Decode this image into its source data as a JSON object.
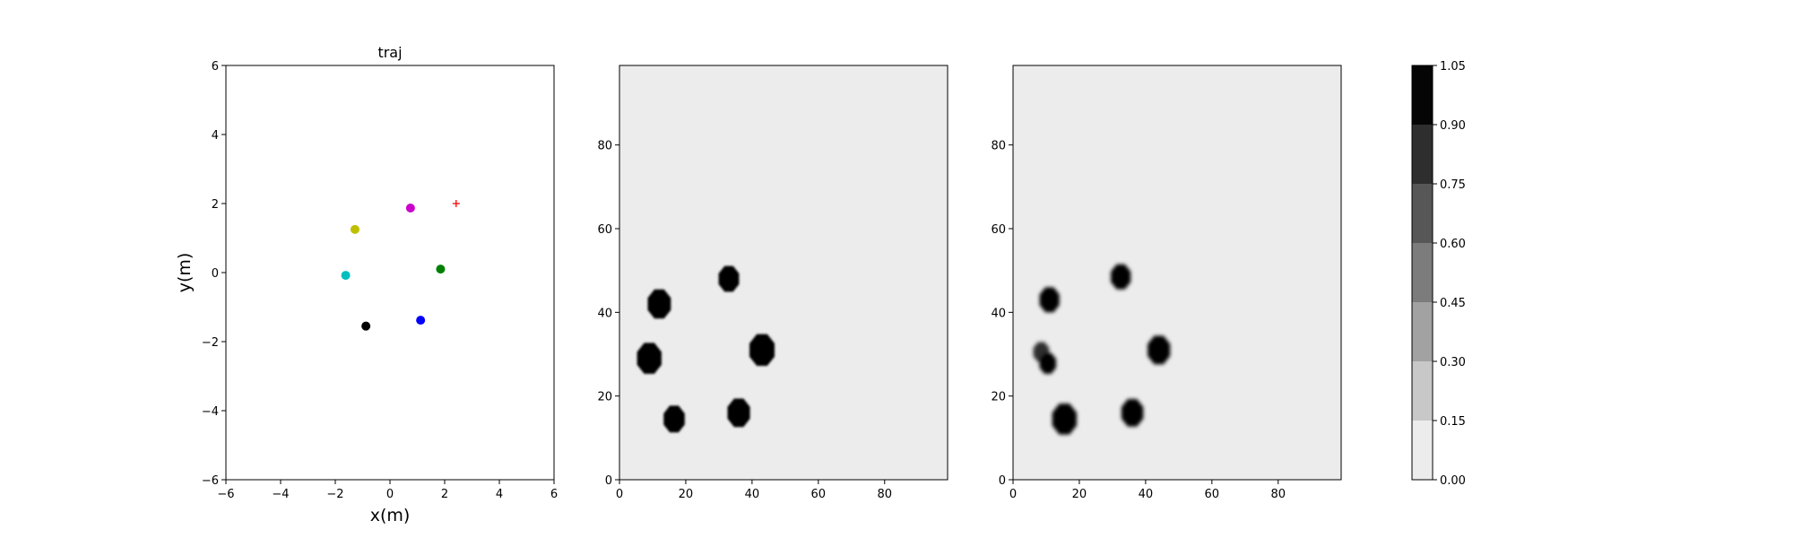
{
  "chart_data": [
    {
      "type": "scatter",
      "title": "traj",
      "xlabel": "x(m)",
      "ylabel": "y(m)",
      "xlim": [
        -6,
        6
      ],
      "ylim": [
        -6,
        6
      ],
      "xticks": [
        "−6",
        "−4",
        "−2",
        "0",
        "2",
        "4",
        "6"
      ],
      "yticks": [
        "−6",
        "−4",
        "−2",
        "0",
        "2",
        "4",
        "6"
      ],
      "xtick_values": [
        -6,
        -4,
        -2,
        0,
        2,
        4,
        6
      ],
      "ytick_values": [
        -6,
        -4,
        -2,
        0,
        2,
        4,
        6
      ],
      "points": [
        {
          "name": "agent-magenta",
          "x": 0.75,
          "y": 1.87,
          "color": "#cc00cc"
        },
        {
          "name": "agent-yellow",
          "x": -1.28,
          "y": 1.25,
          "color": "#bfbf00"
        },
        {
          "name": "agent-cyan",
          "x": -1.62,
          "y": -0.08,
          "color": "#00bfbf"
        },
        {
          "name": "agent-green",
          "x": 1.85,
          "y": 0.1,
          "color": "#008000"
        },
        {
          "name": "agent-blue",
          "x": 1.12,
          "y": -1.38,
          "color": "#0000ff"
        },
        {
          "name": "agent-black",
          "x": -0.88,
          "y": -1.55,
          "color": "#000000"
        }
      ],
      "goal_marker": {
        "name": "goal",
        "x": 2.42,
        "y": 2.0,
        "symbol": "+",
        "color": "#ff0000"
      }
    },
    {
      "type": "heatmap",
      "title": "",
      "xlim": [
        0,
        99
      ],
      "ylim": [
        0,
        99
      ],
      "xticks": [
        "0",
        "20",
        "40",
        "60",
        "80"
      ],
      "yticks": [
        "0",
        "20",
        "40",
        "60",
        "80"
      ],
      "xtick_values": [
        0,
        20,
        40,
        60,
        80
      ],
      "ytick_values": [
        0,
        20,
        40,
        60,
        80
      ],
      "background_value": 0.0,
      "blobs": [
        {
          "x": 33,
          "y": 48,
          "r": 3.1,
          "value": 1.0
        },
        {
          "x": 12,
          "y": 42,
          "r": 3.5,
          "value": 1.0
        },
        {
          "x": 9,
          "y": 29,
          "r": 3.7,
          "value": 1.0
        },
        {
          "x": 43,
          "y": 31,
          "r": 3.8,
          "value": 1.0
        },
        {
          "x": 16.5,
          "y": 14.5,
          "r": 3.2,
          "value": 1.0
        },
        {
          "x": 36,
          "y": 16,
          "r": 3.4,
          "value": 1.0
        }
      ]
    },
    {
      "type": "heatmap",
      "title": "",
      "xlim": [
        0,
        99
      ],
      "ylim": [
        0,
        99
      ],
      "xticks": [
        "0",
        "20",
        "40",
        "60",
        "80"
      ],
      "yticks": [
        "0",
        "20",
        "40",
        "60",
        "80"
      ],
      "xtick_values": [
        0,
        20,
        40,
        60,
        80
      ],
      "ytick_values": [
        0,
        20,
        40,
        60,
        80
      ],
      "background_value": 0.0,
      "blobs": [
        {
          "x": 32.5,
          "y": 48.5,
          "r": 3.0,
          "value": 1.0
        },
        {
          "x": 11,
          "y": 43,
          "r": 3.0,
          "value": 1.0
        },
        {
          "x": 8.5,
          "y": 30.5,
          "r": 2.4,
          "value": 0.85
        },
        {
          "x": 10.5,
          "y": 27.8,
          "r": 2.5,
          "value": 1.0
        },
        {
          "x": 44,
          "y": 31,
          "r": 3.4,
          "value": 1.0
        },
        {
          "x": 15.5,
          "y": 14.5,
          "r": 3.7,
          "value": 1.0
        },
        {
          "x": 36,
          "y": 16,
          "r": 3.3,
          "value": 1.0
        }
      ]
    },
    {
      "type": "colorbar",
      "levels": [
        0.0,
        0.15,
        0.3,
        0.45,
        0.6,
        0.75,
        0.9,
        1.05
      ],
      "tick_labels": [
        "0.00",
        "0.15",
        "0.30",
        "0.45",
        "0.60",
        "0.75",
        "0.90",
        "1.05"
      ],
      "colors": [
        "#ececec",
        "#c8c8c8",
        "#a2a2a2",
        "#7c7c7c",
        "#575757",
        "#2e2e2e",
        "#050505"
      ]
    }
  ]
}
